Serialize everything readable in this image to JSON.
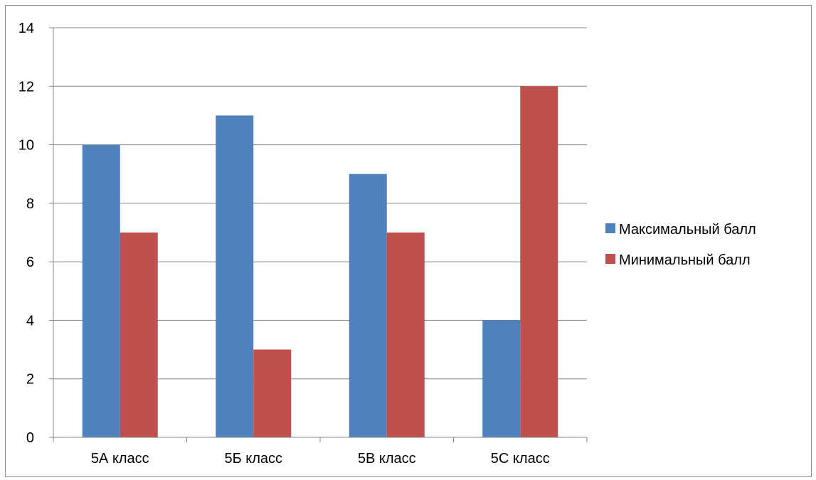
{
  "chart_data": {
    "type": "bar",
    "title": "",
    "xlabel": "",
    "ylabel": "",
    "categories": [
      "5А класс",
      "5Б класс",
      "5В класс",
      "5С класс"
    ],
    "series": [
      {
        "name": "Максимальный балл",
        "values": [
          10,
          11,
          9,
          4
        ],
        "color": "#4F81BD"
      },
      {
        "name": "Минимальный балл",
        "values": [
          7,
          3,
          7,
          12
        ],
        "color": "#C0504D"
      }
    ],
    "ylim": [
      0,
      14
    ],
    "y_ticks": [
      "0",
      "2",
      "4",
      "6",
      "8",
      "10",
      "12",
      "14"
    ],
    "grid": true,
    "legend_position": "right"
  }
}
